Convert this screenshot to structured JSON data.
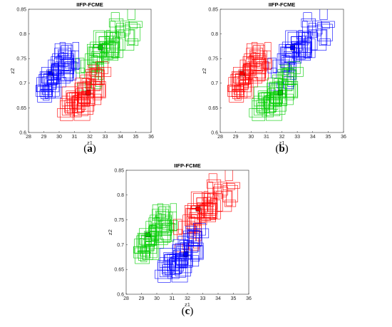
{
  "chart_data": [
    {
      "type": "scatter",
      "title": "IIFP-FCME",
      "xlabel": "z1",
      "ylabel": "z2",
      "xlim": [
        28,
        36
      ],
      "ylim": [
        0.6,
        0.85
      ],
      "xticks": [
        "28",
        "29",
        "30",
        "31",
        "32",
        "33",
        "34",
        "35",
        "36"
      ],
      "yticks": [
        "0.6",
        "0.65",
        "0.7",
        "0.75",
        "0.8",
        "0.85"
      ],
      "caption": {
        "open": "(",
        "letter": "a",
        "close": ")"
      },
      "clusters": [
        {
          "color": "#0000ff",
          "center": [
            29.4,
            0.72
          ],
          "extent_x": [
            28.6,
            31.1
          ],
          "extent_y": [
            0.675,
            0.765
          ]
        },
        {
          "color": "#00cc00",
          "center": [
            32.7,
            0.772
          ],
          "extent_x": [
            31.2,
            35.0
          ],
          "extent_y": [
            0.7,
            0.84
          ]
        },
        {
          "color": "#ff0000",
          "center": [
            31.9,
            0.681
          ],
          "extent_x": [
            30.3,
            33.3
          ],
          "extent_y": [
            0.632,
            0.73
          ]
        }
      ]
    },
    {
      "type": "scatter",
      "title": "IIFP-FCME",
      "xlabel": "z1",
      "ylabel": "z2",
      "xlim": [
        28,
        36
      ],
      "ylim": [
        0.6,
        0.85
      ],
      "xticks": [
        "28",
        "29",
        "30",
        "31",
        "32",
        "33",
        "34",
        "35",
        "36"
      ],
      "yticks": [
        "0.6",
        "0.65",
        "0.7",
        "0.75",
        "0.8",
        "0.85"
      ],
      "caption": {
        "open": "(",
        "letter": "b",
        "close": ")"
      },
      "clusters": [
        {
          "color": "#ff0000",
          "center": [
            29.4,
            0.72
          ],
          "extent_x": [
            28.6,
            31.1
          ],
          "extent_y": [
            0.675,
            0.765
          ]
        },
        {
          "color": "#0000ff",
          "center": [
            32.7,
            0.772
          ],
          "extent_x": [
            31.2,
            35.0
          ],
          "extent_y": [
            0.7,
            0.84
          ]
        },
        {
          "color": "#00cc00",
          "center": [
            31.9,
            0.681
          ],
          "extent_x": [
            30.3,
            33.3
          ],
          "extent_y": [
            0.632,
            0.73
          ]
        }
      ]
    },
    {
      "type": "scatter",
      "title": "IIFP-FCME",
      "xlabel": "z1",
      "ylabel": "z2",
      "xlim": [
        28,
        36
      ],
      "ylim": [
        0.6,
        0.85
      ],
      "xticks": [
        "28",
        "29",
        "30",
        "31",
        "32",
        "33",
        "34",
        "35",
        "36"
      ],
      "yticks": [
        "0.6",
        "0.65",
        "0.7",
        "0.75",
        "0.8",
        "0.85"
      ],
      "caption": {
        "open": "(",
        "letter": "c",
        "close": ")"
      },
      "clusters": [
        {
          "color": "#00cc00",
          "center": [
            29.4,
            0.72
          ],
          "extent_x": [
            28.6,
            31.1
          ],
          "extent_y": [
            0.675,
            0.765
          ]
        },
        {
          "color": "#ff0000",
          "center": [
            32.7,
            0.772
          ],
          "extent_x": [
            31.2,
            35.0
          ],
          "extent_y": [
            0.7,
            0.84
          ]
        },
        {
          "color": "#0000ff",
          "center": [
            31.9,
            0.681
          ],
          "extent_x": [
            30.3,
            33.3
          ],
          "extent_y": [
            0.632,
            0.73
          ]
        }
      ]
    }
  ]
}
